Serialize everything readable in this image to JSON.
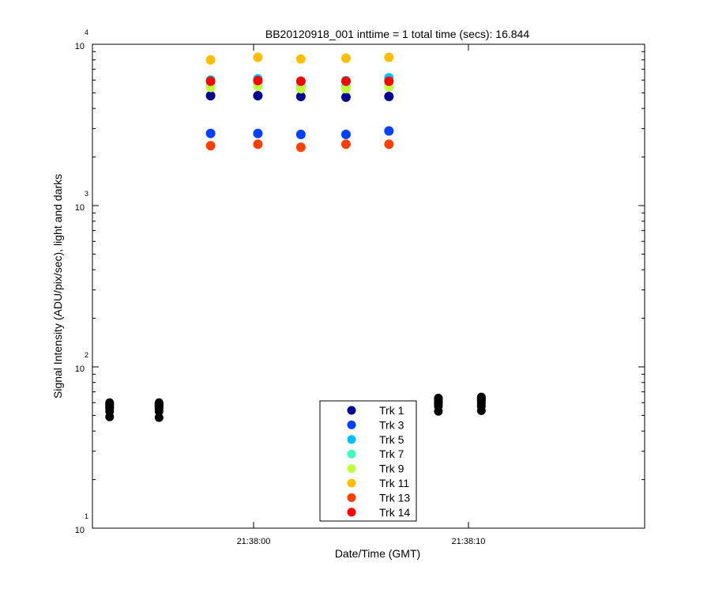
{
  "chart_data": {
    "type": "scatter",
    "title": "BB20120918_001 inttime = 1 total time (secs): 16.844",
    "xlabel": "Date/Time (GMT)",
    "ylabel": "Signal Intensity (ADU/pix/sec), light and darks",
    "y_scale": "log",
    "ylim": [
      10,
      10000
    ],
    "xlim": [
      "21:37:52.5",
      "21:38:18.2"
    ],
    "x_ticks": [
      "21:38:00",
      "21:38:10"
    ],
    "y_ticks": [
      {
        "base": "10",
        "exp": "1"
      },
      {
        "base": "10",
        "exp": "2"
      },
      {
        "base": "10",
        "exp": "3"
      },
      {
        "base": "10",
        "exp": "4"
      }
    ],
    "grid": false,
    "legend_position": "bottom-center",
    "series": [
      {
        "name": "Trk 1",
        "color": "#00008f",
        "x": [
          "21:37:58.0",
          "21:38:00.2",
          "21:38:02.2",
          "21:38:04.3",
          "21:38:06.3"
        ],
        "y": [
          4800,
          4800,
          4750,
          4700,
          4750
        ]
      },
      {
        "name": "Trk 3",
        "color": "#0040ff",
        "x": [
          "21:37:58.0",
          "21:38:00.2",
          "21:38:02.2",
          "21:38:04.3",
          "21:38:06.3"
        ],
        "y": [
          2800,
          2800,
          2760,
          2760,
          2900
        ]
      },
      {
        "name": "Trk 5",
        "color": "#00bfff",
        "x": [
          "21:37:58.0",
          "21:38:00.2",
          "21:38:02.2",
          "21:38:04.3",
          "21:38:06.3"
        ],
        "y": [
          6000,
          6100,
          5900,
          5950,
          6200
        ]
      },
      {
        "name": "Trk 7",
        "color": "#40ffbf",
        "x": [
          "21:37:58.0",
          "21:38:00.2",
          "21:38:02.2",
          "21:38:04.3",
          "21:38:06.3"
        ],
        "y": [
          5600,
          5700,
          5500,
          5500,
          5600
        ]
      },
      {
        "name": "Trk 9",
        "color": "#bfff40",
        "x": [
          "21:37:58.0",
          "21:38:00.2",
          "21:38:02.2",
          "21:38:04.3",
          "21:38:06.3"
        ],
        "y": [
          5400,
          5500,
          5300,
          5300,
          5450
        ]
      },
      {
        "name": "Trk 11",
        "color": "#ffbf00",
        "x": [
          "21:37:58.0",
          "21:38:00.2",
          "21:38:02.2",
          "21:38:04.3",
          "21:38:06.3"
        ],
        "y": [
          8000,
          8300,
          8100,
          8200,
          8300
        ]
      },
      {
        "name": "Trk 13",
        "color": "#ff4000",
        "x": [
          "21:37:58.0",
          "21:38:00.2",
          "21:38:02.2",
          "21:38:04.3",
          "21:38:06.3"
        ],
        "y": [
          2350,
          2400,
          2300,
          2400,
          2400
        ]
      },
      {
        "name": "Trk 14",
        "color": "#ff0000",
        "x": [
          "21:37:58.0",
          "21:38:00.2",
          "21:38:02.2",
          "21:38:04.3",
          "21:38:06.3"
        ],
        "y": [
          5900,
          5950,
          5900,
          5900,
          5900
        ]
      }
    ],
    "dark_points": {
      "color": "#000000",
      "x": [
        "21:37:53.3",
        "21:37:53.3",
        "21:37:53.3",
        "21:37:53.3",
        "21:37:53.3",
        "21:37:53.3",
        "21:37:53.3",
        "21:37:53.3",
        "21:37:55.6",
        "21:37:55.6",
        "21:37:55.6",
        "21:37:55.6",
        "21:37:55.6",
        "21:37:55.6",
        "21:37:55.6",
        "21:37:55.6",
        "21:38:08.6",
        "21:38:08.6",
        "21:38:08.6",
        "21:38:08.6",
        "21:38:08.6",
        "21:38:08.6",
        "21:38:08.6",
        "21:38:08.6",
        "21:38:10.6",
        "21:38:10.6",
        "21:38:10.6",
        "21:38:10.6",
        "21:38:10.6",
        "21:38:10.6",
        "21:38:10.6",
        "21:38:10.6"
      ],
      "y": [
        49,
        53,
        55,
        56,
        57,
        58,
        59,
        60,
        48.5,
        53,
        55,
        56,
        57,
        58,
        59,
        60,
        53,
        57,
        59,
        60,
        61,
        62,
        63,
        64,
        53.5,
        57,
        59,
        61,
        62,
        63,
        64,
        65
      ]
    }
  }
}
